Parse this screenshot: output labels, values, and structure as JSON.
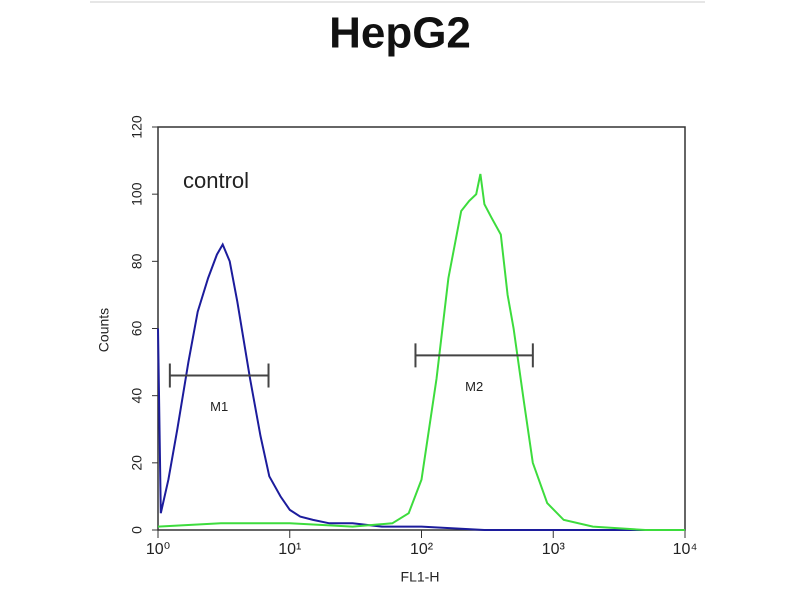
{
  "chart_data": {
    "type": "line",
    "title": "HepG2",
    "annotation": "control",
    "xlabel": "FL1-H",
    "ylabel": "Counts",
    "xscale": "log",
    "xlim": [
      1,
      10000
    ],
    "xticks": [
      {
        "value": 1,
        "label": "10⁰"
      },
      {
        "value": 10,
        "label": "10¹"
      },
      {
        "value": 100,
        "label": "10²"
      },
      {
        "value": 1000,
        "label": "10³"
      },
      {
        "value": 10000,
        "label": "10⁴"
      }
    ],
    "ylim": [
      0,
      120
    ],
    "yticks": [
      0,
      20,
      40,
      60,
      80,
      100,
      120
    ],
    "series": [
      {
        "color": "#1c1c9c",
        "x": [
          1,
          1.05,
          1.2,
          1.4,
          1.7,
          2,
          2.4,
          2.8,
          3.1,
          3.5,
          4,
          5,
          6,
          7,
          8.5,
          10,
          12,
          15,
          20,
          30,
          50,
          100,
          300,
          1000,
          10000
        ],
        "values": [
          60,
          5,
          15,
          30,
          50,
          65,
          75,
          82,
          85,
          80,
          68,
          45,
          28,
          16,
          10,
          6,
          4,
          3,
          2,
          2,
          1,
          1,
          0,
          0,
          0
        ]
      },
      {
        "color": "#3ddc3d",
        "x": [
          1,
          3,
          10,
          30,
          60,
          80,
          100,
          130,
          160,
          200,
          230,
          260,
          280,
          300,
          340,
          400,
          450,
          500,
          600,
          700,
          900,
          1200,
          2000,
          5000,
          10000
        ],
        "values": [
          1,
          2,
          2,
          1,
          2,
          5,
          15,
          45,
          75,
          95,
          98,
          100,
          106,
          97,
          93,
          88,
          70,
          60,
          38,
          20,
          8,
          3,
          1,
          0,
          0
        ]
      }
    ],
    "markers": [
      {
        "label": "M1",
        "x": [
          1.23,
          6.9
        ],
        "y": 46
      },
      {
        "label": "M2",
        "x": [
          90,
          700
        ],
        "y": 52
      }
    ]
  }
}
